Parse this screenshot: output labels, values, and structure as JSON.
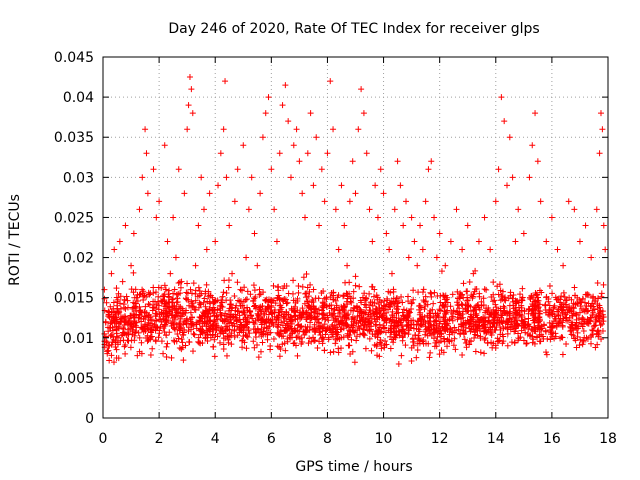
{
  "chart_data": {
    "type": "scatter",
    "title": "Day 246 of 2020, Rate Of TEC Index for receiver glps",
    "xlabel": "GPS time / hours",
    "ylabel": "ROTI / TECUs",
    "xlim": [
      0,
      18
    ],
    "ylim": [
      0,
      0.045
    ],
    "xticks": [
      0,
      2,
      4,
      6,
      8,
      10,
      12,
      14,
      16,
      18
    ],
    "yticks": [
      0,
      0.005,
      0.01,
      0.015,
      0.02,
      0.025,
      0.03,
      0.035,
      0.04,
      0.045
    ],
    "xtick_labels": [
      "0",
      "2",
      "4",
      "6",
      "8",
      "10",
      "12",
      "14",
      "16",
      "18"
    ],
    "ytick_labels": [
      "0",
      "0.005",
      "0.01",
      "0.015",
      "0.02",
      "0.025",
      "0.03",
      "0.035",
      "0.04",
      "0.045"
    ],
    "grid": true,
    "marker": "+",
    "series_color": "#ff0000",
    "series": [
      {
        "name": "ROTI",
        "description": "dense cloud of ROTI samples, typically 0.005-0.022 TECU/min with peaks to ~0.042",
        "points": [
          [
            0.05,
            0.016
          ],
          [
            0.1,
            0.012
          ],
          [
            0.2,
            0.009
          ],
          [
            0.3,
            0.018
          ],
          [
            0.4,
            0.021
          ],
          [
            0.5,
            0.014
          ],
          [
            0.6,
            0.022
          ],
          [
            0.7,
            0.017
          ],
          [
            0.8,
            0.024
          ],
          [
            0.9,
            0.011
          ],
          [
            1.0,
            0.019
          ],
          [
            1.1,
            0.023
          ],
          [
            1.2,
            0.015
          ],
          [
            1.3,
            0.026
          ],
          [
            1.4,
            0.03
          ],
          [
            1.5,
            0.036
          ],
          [
            1.55,
            0.033
          ],
          [
            1.6,
            0.028
          ],
          [
            1.7,
            0.01
          ],
          [
            1.8,
            0.031
          ],
          [
            1.9,
            0.025
          ],
          [
            2.0,
            0.027
          ],
          [
            2.1,
            0.013
          ],
          [
            2.2,
            0.034
          ],
          [
            2.3,
            0.022
          ],
          [
            2.4,
            0.018
          ],
          [
            2.5,
            0.025
          ],
          [
            2.6,
            0.02
          ],
          [
            2.7,
            0.031
          ],
          [
            2.8,
            0.017
          ],
          [
            2.9,
            0.028
          ],
          [
            3.0,
            0.036
          ],
          [
            3.05,
            0.039
          ],
          [
            3.1,
            0.0425
          ],
          [
            3.15,
            0.041
          ],
          [
            3.2,
            0.038
          ],
          [
            3.3,
            0.019
          ],
          [
            3.4,
            0.024
          ],
          [
            3.5,
            0.03
          ],
          [
            3.6,
            0.026
          ],
          [
            3.7,
            0.021
          ],
          [
            3.8,
            0.028
          ],
          [
            3.9,
            0.015
          ],
          [
            4.0,
            0.022
          ],
          [
            4.1,
            0.029
          ],
          [
            4.2,
            0.033
          ],
          [
            4.3,
            0.036
          ],
          [
            4.35,
            0.042
          ],
          [
            4.4,
            0.03
          ],
          [
            4.5,
            0.024
          ],
          [
            4.6,
            0.018
          ],
          [
            4.7,
            0.027
          ],
          [
            4.8,
            0.031
          ],
          [
            4.9,
            0.016
          ],
          [
            5.0,
            0.034
          ],
          [
            5.1,
            0.02
          ],
          [
            5.2,
            0.026
          ],
          [
            5.3,
            0.03
          ],
          [
            5.4,
            0.023
          ],
          [
            5.5,
            0.019
          ],
          [
            5.6,
            0.028
          ],
          [
            5.7,
            0.035
          ],
          [
            5.8,
            0.038
          ],
          [
            5.9,
            0.04
          ],
          [
            6.0,
            0.031
          ],
          [
            6.1,
            0.026
          ],
          [
            6.2,
            0.022
          ],
          [
            6.3,
            0.033
          ],
          [
            6.4,
            0.039
          ],
          [
            6.5,
            0.0415
          ],
          [
            6.6,
            0.037
          ],
          [
            6.7,
            0.03
          ],
          [
            6.8,
            0.034
          ],
          [
            6.9,
            0.036
          ],
          [
            7.0,
            0.032
          ],
          [
            7.1,
            0.028
          ],
          [
            7.2,
            0.025
          ],
          [
            7.3,
            0.033
          ],
          [
            7.4,
            0.038
          ],
          [
            7.5,
            0.029
          ],
          [
            7.6,
            0.035
          ],
          [
            7.7,
            0.024
          ],
          [
            7.8,
            0.031
          ],
          [
            7.9,
            0.027
          ],
          [
            8.0,
            0.033
          ],
          [
            8.1,
            0.042
          ],
          [
            8.2,
            0.036
          ],
          [
            8.3,
            0.026
          ],
          [
            8.4,
            0.021
          ],
          [
            8.5,
            0.029
          ],
          [
            8.6,
            0.024
          ],
          [
            8.7,
            0.019
          ],
          [
            8.8,
            0.027
          ],
          [
            8.9,
            0.032
          ],
          [
            9.0,
            0.028
          ],
          [
            9.1,
            0.036
          ],
          [
            9.2,
            0.041
          ],
          [
            9.3,
            0.038
          ],
          [
            9.4,
            0.033
          ],
          [
            9.5,
            0.026
          ],
          [
            9.6,
            0.022
          ],
          [
            9.7,
            0.029
          ],
          [
            9.8,
            0.025
          ],
          [
            9.9,
            0.031
          ],
          [
            10.0,
            0.028
          ],
          [
            10.1,
            0.023
          ],
          [
            10.2,
            0.021
          ],
          [
            10.3,
            0.018
          ],
          [
            10.4,
            0.026
          ],
          [
            10.5,
            0.032
          ],
          [
            10.6,
            0.029
          ],
          [
            10.7,
            0.024
          ],
          [
            10.8,
            0.027
          ],
          [
            10.9,
            0.02
          ],
          [
            11.0,
            0.025
          ],
          [
            11.1,
            0.022
          ],
          [
            11.2,
            0.019
          ],
          [
            11.3,
            0.024
          ],
          [
            11.4,
            0.021
          ],
          [
            11.5,
            0.027
          ],
          [
            11.6,
            0.031
          ],
          [
            11.7,
            0.032
          ],
          [
            11.8,
            0.025
          ],
          [
            11.9,
            0.02
          ],
          [
            12.0,
            0.023
          ],
          [
            12.2,
            0.019
          ],
          [
            12.4,
            0.022
          ],
          [
            12.6,
            0.026
          ],
          [
            12.8,
            0.021
          ],
          [
            13.0,
            0.024
          ],
          [
            13.2,
            0.018
          ],
          [
            13.4,
            0.022
          ],
          [
            13.6,
            0.025
          ],
          [
            13.8,
            0.021
          ],
          [
            14.0,
            0.027
          ],
          [
            14.1,
            0.031
          ],
          [
            14.2,
            0.04
          ],
          [
            14.3,
            0.037
          ],
          [
            14.4,
            0.029
          ],
          [
            14.5,
            0.035
          ],
          [
            14.6,
            0.03
          ],
          [
            14.7,
            0.022
          ],
          [
            14.8,
            0.026
          ],
          [
            15.0,
            0.023
          ],
          [
            15.2,
            0.03
          ],
          [
            15.3,
            0.034
          ],
          [
            15.4,
            0.038
          ],
          [
            15.5,
            0.032
          ],
          [
            15.6,
            0.027
          ],
          [
            15.8,
            0.022
          ],
          [
            16.0,
            0.025
          ],
          [
            16.2,
            0.021
          ],
          [
            16.4,
            0.019
          ],
          [
            16.6,
            0.027
          ],
          [
            16.8,
            0.026
          ],
          [
            17.0,
            0.022
          ],
          [
            17.2,
            0.024
          ],
          [
            17.4,
            0.02
          ],
          [
            17.6,
            0.026
          ],
          [
            17.7,
            0.033
          ],
          [
            17.75,
            0.038
          ],
          [
            17.8,
            0.036
          ],
          [
            17.85,
            0.024
          ],
          [
            17.9,
            0.021
          ]
        ]
      }
    ]
  }
}
